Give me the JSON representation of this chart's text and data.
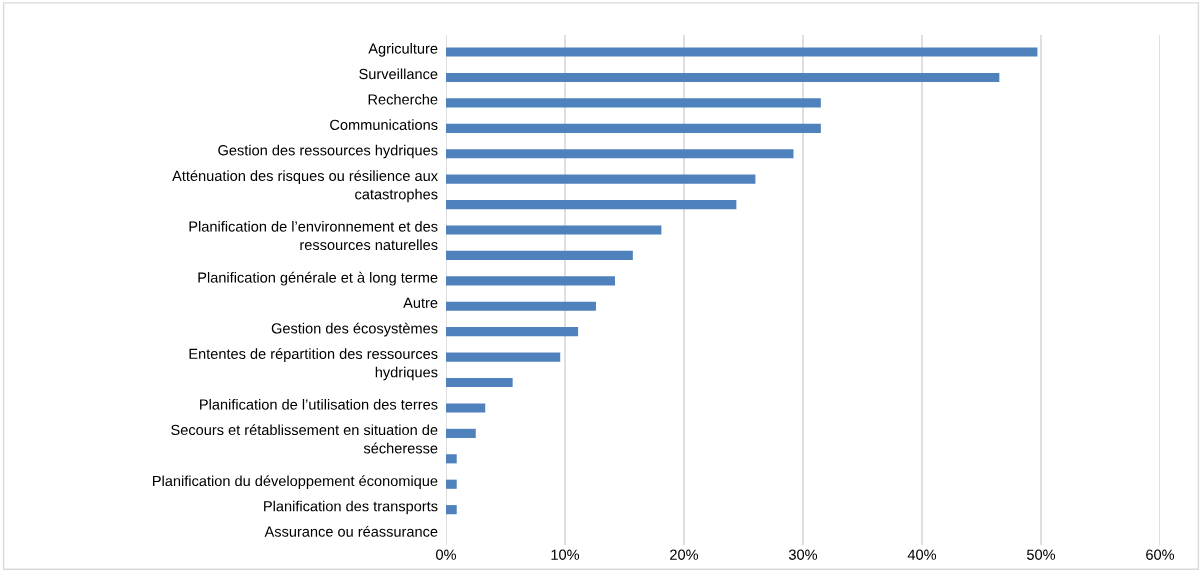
{
  "chart_data": {
    "type": "bar",
    "orientation": "horizontal",
    "color": "#4f81bd",
    "grid": "x",
    "categories": [
      "Agriculture",
      "Surveillance",
      "Recherche",
      "Communications",
      "Gestion des ressources hydriques",
      "Atténuation des risques ou résilience aux\ncatastrophes",
      null,
      "Planification de l’environnement et des\nressources naturelles",
      null,
      "Planification générale et à long terme",
      "Autre",
      "Gestion des écosystèmes",
      "Ententes de répartition des ressources\nhydriques",
      null,
      "Planification de l’utilisation des terres",
      "Secours et rétablissement en situation de\nsécheresse",
      null,
      "Planification du développement économique",
      "Planification des transports",
      "Assurance ou réassurance"
    ],
    "values": [
      49.7,
      46.5,
      31.5,
      31.5,
      29.2,
      26.0,
      24.4,
      18.1,
      15.7,
      14.2,
      12.6,
      11.1,
      9.6,
      5.6,
      3.3,
      2.5,
      0.9,
      0.9,
      0.9,
      null
    ],
    "xlim": [
      0,
      60
    ],
    "xticks": [
      {
        "value": 0,
        "label": "0%"
      },
      {
        "value": 10,
        "label": "10%"
      },
      {
        "value": 20,
        "label": "20%"
      },
      {
        "value": 30,
        "label": "30%"
      },
      {
        "value": 40,
        "label": "40%"
      },
      {
        "value": 50,
        "label": "50%"
      },
      {
        "value": 60,
        "label": "60%"
      }
    ]
  }
}
